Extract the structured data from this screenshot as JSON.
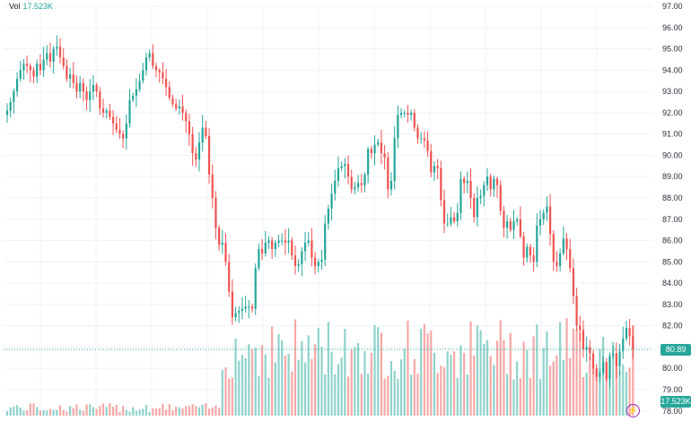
{
  "volume_legend": {
    "label": "Vol",
    "value": "17.523K"
  },
  "last_price_tag": "80.89",
  "volume_tag": "17.523K",
  "bolt_icon": "lightning-icon",
  "colors": {
    "up": "#26a69a",
    "down": "#ef5350",
    "up_vol": "#8fd3cb",
    "down_vol": "#f5a9a7"
  },
  "chart_data": {
    "type": "candlestick",
    "ylim": [
      78.2,
      97.0
    ],
    "y_ticks": [
      "97.00",
      "96.00",
      "95.00",
      "94.00",
      "93.00",
      "92.00",
      "91.00",
      "90.00",
      "89.00",
      "88.00",
      "87.00",
      "86.00",
      "85.00",
      "84.00",
      "83.00",
      "82.00",
      "81.00",
      "80.00",
      "79.00",
      "78.00"
    ],
    "closes": [
      92.1,
      92.5,
      93.0,
      93.6,
      94.0,
      94.3,
      94.2,
      94.0,
      93.7,
      94.3,
      94.0,
      94.5,
      94.8,
      94.4,
      95.0,
      95.1,
      94.6,
      94.2,
      93.6,
      93.8,
      93.4,
      93.0,
      93.4,
      93.0,
      92.6,
      93.0,
      93.3,
      93.0,
      92.2,
      92.0,
      92.1,
      91.8,
      91.5,
      91.2,
      91.0,
      90.8,
      91.5,
      92.6,
      92.8,
      93.1,
      93.5,
      94.0,
      94.6,
      94.8,
      94.2,
      94.0,
      93.9,
      93.6,
      93.2,
      92.7,
      92.4,
      92.2,
      92.3,
      92.0,
      91.6,
      91.0,
      90.1,
      89.8,
      90.6,
      91.3,
      90.9,
      89.1,
      88.0,
      86.6,
      85.8,
      85.9,
      85.0,
      83.6,
      82.4,
      82.6,
      82.7,
      82.8,
      82.9,
      82.9,
      82.8,
      84.7,
      85.6,
      85.4,
      85.9,
      86.0,
      85.6,
      85.9,
      86.0,
      86.0,
      85.9,
      86.0,
      85.3,
      84.8,
      84.9,
      85.5,
      85.9,
      86.0,
      85.2,
      84.8,
      85.0,
      85.1,
      86.8,
      87.5,
      88.2,
      88.8,
      89.4,
      89.5,
      89.6,
      89.0,
      88.4,
      88.5,
      88.7,
      88.6,
      89.1,
      90.3,
      90.1,
      90.5,
      90.6,
      90.1,
      89.9,
      88.4,
      88.8,
      90.8,
      91.9,
      92.0,
      92.0,
      91.9,
      92.0,
      91.3,
      90.8,
      90.8,
      90.7,
      90.2,
      89.2,
      89.5,
      89.4,
      87.9,
      86.8,
      86.8,
      87.1,
      86.9,
      87.3,
      88.9,
      88.7,
      88.8,
      88.0,
      87.1,
      88.0,
      88.1,
      88.6,
      89.0,
      88.4,
      88.9,
      88.6,
      87.4,
      86.6,
      86.9,
      86.5,
      86.9,
      87.0,
      86.2,
      85.2,
      85.7,
      85.3,
      85.0,
      86.7,
      87.0,
      87.3,
      87.6,
      86.3,
      85.0,
      84.8,
      85.4,
      86.1,
      85.6,
      84.7,
      83.4,
      82.0,
      81.8,
      80.9,
      81.0,
      80.7,
      80.0,
      79.6,
      79.8,
      80.3,
      79.5,
      80.6,
      80.7,
      80.1,
      80.8,
      81.4,
      81.9,
      81.5,
      80.9
    ],
    "volume_max": 84000
  }
}
